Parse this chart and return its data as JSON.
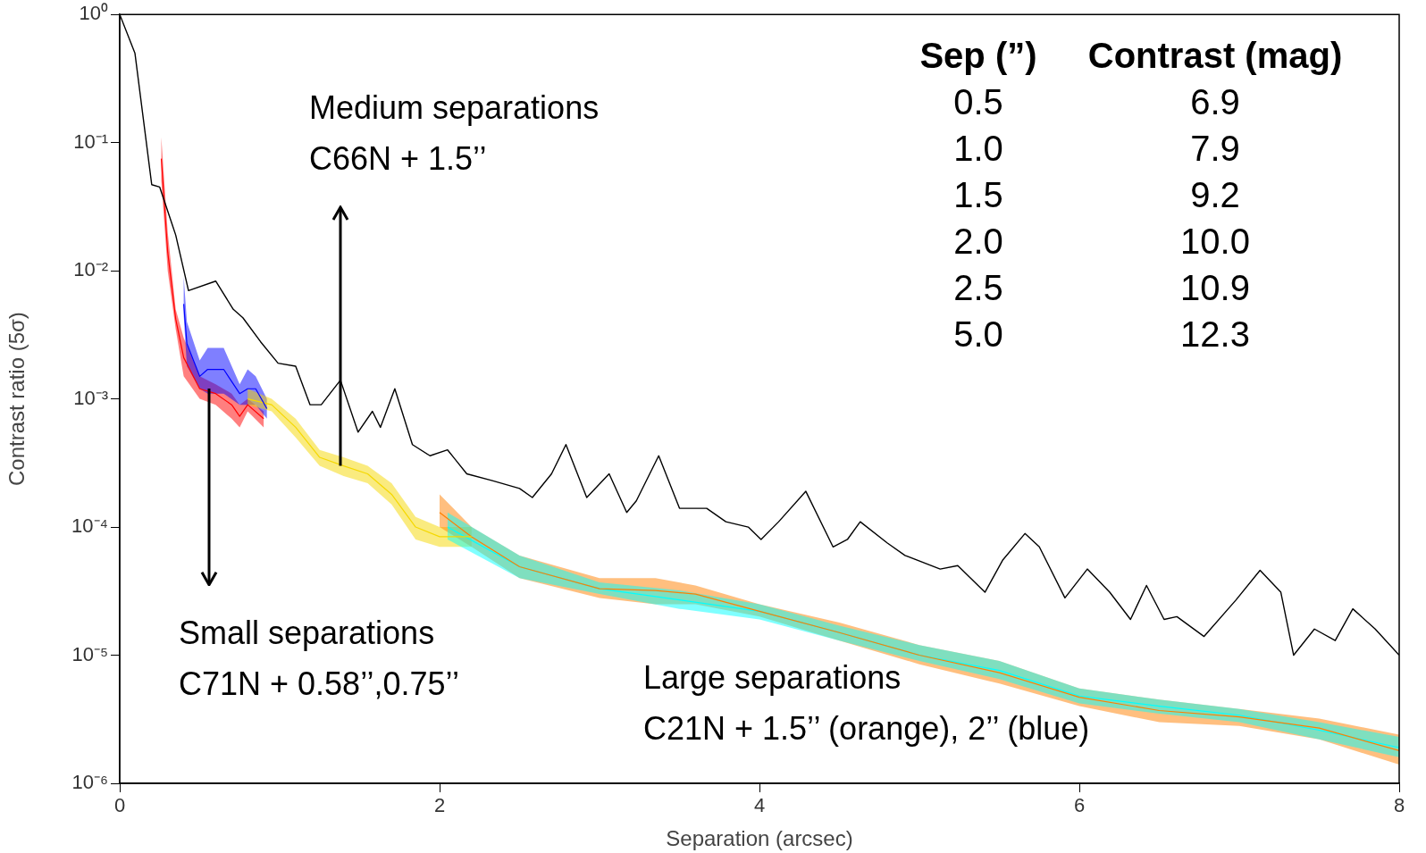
{
  "chart_data": {
    "type": "line",
    "xlabel": "Separation (arcsec)",
    "ylabel": "Contrast ratio (5σ)",
    "log": "y",
    "xlim": [
      0,
      8
    ],
    "xticks": [
      0,
      2,
      4,
      6,
      8
    ],
    "ylim": [
      1e-06,
      1
    ],
    "yticks": [
      {
        "value": 1,
        "label": "10⁰"
      },
      {
        "value": 0.1,
        "label": "10⁻¹"
      },
      {
        "value": 0.01,
        "label": "10⁻²"
      },
      {
        "value": 0.001,
        "label": "10⁻³"
      },
      {
        "value": 0.0001,
        "label": "10⁻⁴"
      },
      {
        "value": 1e-05,
        "label": "10⁻⁵"
      },
      {
        "value": 1e-06,
        "label": "10⁻⁶"
      }
    ],
    "series": [
      {
        "color": "#000000",
        "x": [
          0,
          0.095,
          0.2,
          0.25,
          0.35,
          0.43,
          0.6,
          0.71,
          0.77,
          0.88,
          0.99,
          1.1,
          1.19,
          1.26,
          1.38,
          1.49,
          1.58,
          1.63,
          1.72,
          1.83,
          1.94,
          2.05,
          2.17,
          2.33,
          2.5,
          2.58,
          2.7,
          2.79,
          2.92,
          3.06,
          3.17,
          3.23,
          3.37,
          3.5,
          3.67,
          3.79,
          3.93,
          4.01,
          4.12,
          4.29,
          4.46,
          4.55,
          4.63,
          4.8,
          4.91,
          5.13,
          5.24,
          5.41,
          5.52,
          5.66,
          5.75,
          5.91,
          6.05,
          6.19,
          6.32,
          6.42,
          6.53,
          6.61,
          6.78,
          6.98,
          7.13,
          7.26,
          7.34,
          7.47,
          7.6,
          7.71,
          7.85,
          8
        ],
        "values": [
          1,
          0.5,
          0.047,
          0.045,
          0.019,
          0.007,
          0.0083,
          0.005,
          0.0043,
          0.0028,
          0.0019,
          0.0018,
          0.0009,
          0.0009,
          0.0014,
          0.00055,
          0.0008,
          0.0006,
          0.0012,
          0.00044,
          0.00036,
          0.0004,
          0.00026,
          0.00023,
          0.0002,
          0.00017,
          0.00026,
          0.00044,
          0.00017,
          0.00026,
          0.00013,
          0.00016,
          0.00036,
          0.00014,
          0.00014,
          0.00011,
          0.0001,
          8e-05,
          0.00011,
          0.00019,
          7e-05,
          8e-05,
          0.00011,
          7.5e-05,
          6e-05,
          4.7e-05,
          5e-05,
          3.1e-05,
          5.5e-05,
          8.9e-05,
          7e-05,
          2.8e-05,
          4.7e-05,
          3.1e-05,
          1.9e-05,
          3.5e-05,
          1.9e-05,
          2e-05,
          1.4e-05,
          2.7e-05,
          4.6e-05,
          3.1e-05,
          1e-05,
          1.6e-05,
          1.3e-05,
          2.3e-05,
          1.6e-05,
          1e-05
        ]
      },
      {
        "type": "line",
        "color": "#ff0000",
        "x": [
          0.26,
          0.3,
          0.35,
          0.4,
          0.5,
          0.6,
          0.7,
          0.75,
          0.8,
          0.9
        ],
        "values": [
          0.075,
          0.014,
          0.0042,
          0.0021,
          0.0012,
          0.0011,
          0.0009,
          0.00073,
          0.0009,
          0.0007
        ],
        "lower": [
          0.05,
          0.01,
          0.0035,
          0.0015,
          0.001,
          0.0009,
          0.0007,
          0.0006,
          0.0008,
          0.0006
        ],
        "upper": [
          0.11,
          0.02,
          0.005,
          0.003,
          0.0015,
          0.0013,
          0.0011,
          0.0009,
          0.001,
          0.0008
        ]
      },
      {
        "type": "line",
        "color": "#0000ff",
        "x": [
          0.4,
          0.42,
          0.5,
          0.55,
          0.65,
          0.75,
          0.8,
          0.85,
          0.92
        ],
        "values": [
          0.0055,
          0.0027,
          0.0015,
          0.0017,
          0.0017,
          0.0011,
          0.0012,
          0.0012,
          0.00084
        ],
        "lower": [
          0.0045,
          0.0018,
          0.0012,
          0.0011,
          0.0011,
          0.0009,
          0.0009,
          0.0009,
          0.0007
        ],
        "upper": [
          0.009,
          0.004,
          0.002,
          0.0025,
          0.0025,
          0.0013,
          0.0017,
          0.0015,
          0.001
        ]
      },
      {
        "type": "line",
        "color": "#f5d800",
        "x": [
          0.8,
          0.95,
          1.1,
          1.25,
          1.4,
          1.55,
          1.7,
          1.85,
          2,
          2.2
        ],
        "values": [
          0.001,
          0.0009,
          0.0006,
          0.00035,
          0.0003,
          0.00026,
          0.00018,
          0.0001,
          8.4e-05,
          8.4e-05
        ],
        "lower": [
          0.0009,
          0.0008,
          0.0005,
          0.0003,
          0.00025,
          0.00022,
          0.00015,
          8e-05,
          7e-05,
          7e-05
        ],
        "upper": [
          0.0012,
          0.001,
          0.0007,
          0.0004,
          0.00035,
          0.0003,
          0.00022,
          0.00012,
          0.0001,
          0.0001
        ]
      },
      {
        "type": "line",
        "color": "#ff7f00",
        "x": [
          2,
          2.2,
          2.5,
          3,
          3.35,
          3.6,
          4,
          4.5,
          5,
          5.5,
          6,
          6.5,
          7,
          7.5,
          8
        ],
        "values": [
          0.00013,
          8.4e-05,
          4.9e-05,
          3.3e-05,
          3.2e-05,
          3e-05,
          2.2e-05,
          1.5e-05,
          1e-05,
          7.3e-06,
          4.7e-06,
          3.7e-06,
          3.3e-06,
          2.7e-06,
          1.8e-06
        ],
        "lower": [
          0.0001,
          7e-05,
          4e-05,
          2.8e-05,
          2.5e-05,
          2.5e-05,
          2e-05,
          1.3e-05,
          8.5e-06,
          6e-06,
          4e-06,
          3e-06,
          2.8e-06,
          2.2e-06,
          1.4e-06
        ],
        "upper": [
          0.00018,
          0.0001,
          6e-05,
          4e-05,
          4e-05,
          3.5e-05,
          2.5e-05,
          1.8e-05,
          1.2e-05,
          9e-06,
          5.5e-06,
          4.5e-06,
          3.8e-06,
          3.2e-06,
          2.4e-06
        ]
      },
      {
        "type": "line",
        "color": "#00ffff",
        "x": [
          2.05,
          2.5,
          3,
          3.5,
          4,
          4.5,
          5,
          5.5,
          6,
          6.5,
          7,
          7.5,
          8
        ],
        "values": [
          0.0001,
          4.9e-05,
          3.3e-05,
          2.7e-05,
          2.2e-05,
          1.5e-05,
          1e-05,
          7.6e-06,
          4.8e-06,
          4e-06,
          3.4e-06,
          2.6e-06,
          1.9e-06
        ],
        "lower": [
          8e-05,
          4e-05,
          3e-05,
          2.3e-05,
          1.9e-05,
          1.3e-05,
          9e-06,
          6.5e-06,
          4.2e-06,
          3.5e-06,
          3e-06,
          2.2e-06,
          1.6e-06
        ],
        "upper": [
          0.00013,
          6e-05,
          3.7e-05,
          3.2e-05,
          2.5e-05,
          1.7e-05,
          1.2e-05,
          9e-06,
          5.5e-06,
          4.5e-06,
          3.8e-06,
          3e-06,
          2.3e-06
        ]
      }
    ],
    "annotations": [
      "Sep (”)",
      "Contrast (mag)",
      "0.5",
      "6.9",
      "1.0",
      "7.9",
      "1.5",
      "9.2",
      "2.0",
      "10.0",
      "2.5",
      "10.9",
      "5.0",
      "12.3",
      "Medium separations",
      {
        "text": "C66N + 1.5’’",
        "x": 1.38,
        "y": 0.0003
      },
      {
        "text": "Small separations",
        "x": 0.56,
        "y": 0.0012
      },
      "C71N + 0.58’’,0.75’’",
      "Large separations",
      "C21N + 1.5’’ (orange), 2’’ (blue)"
    ]
  }
}
